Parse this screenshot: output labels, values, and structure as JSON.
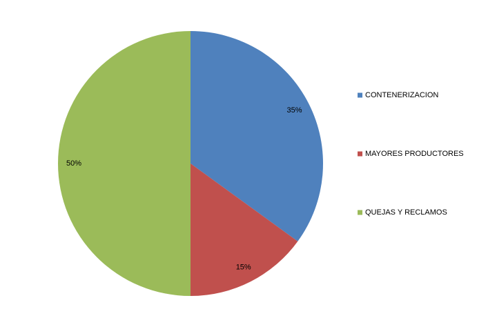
{
  "chart_data": {
    "type": "pie",
    "categories": [
      "CONTENERIZACION",
      "MAYORES PRODUCTORES",
      "QUEJAS Y RECLAMOS"
    ],
    "values": [
      35,
      15,
      50
    ],
    "value_labels": [
      "35%",
      "15%",
      "50%"
    ],
    "colors": [
      "#4f81bd",
      "#c0504d",
      "#9bbb59"
    ],
    "legend": "right"
  }
}
